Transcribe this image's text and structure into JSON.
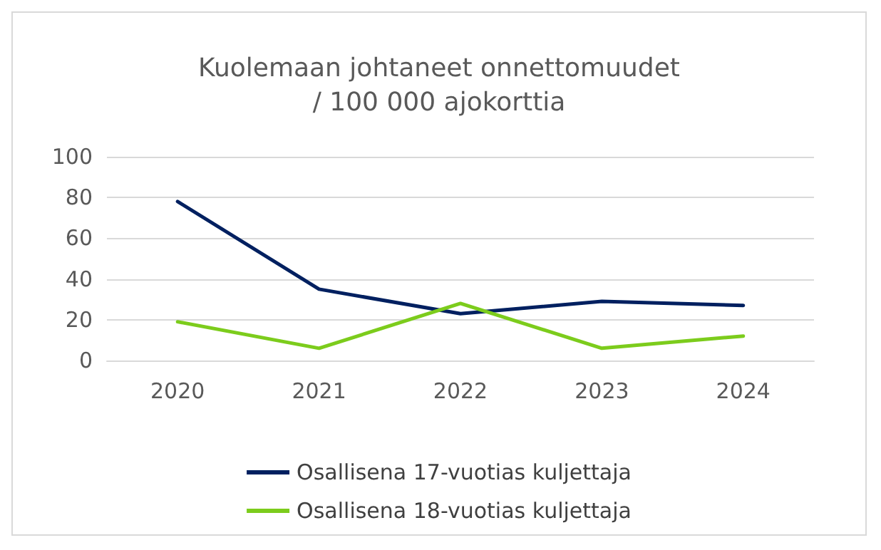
{
  "chart_data": {
    "type": "line",
    "title": "Kuolemaan johtaneet onnettomuudet\n/ 100 000 ajokorttia",
    "categories": [
      "2020",
      "2021",
      "2022",
      "2023",
      "2024"
    ],
    "series": [
      {
        "name": "Osallisena 17-vuotias kuljettaja",
        "color": "#002060",
        "values": [
          78,
          35,
          23,
          29,
          27
        ]
      },
      {
        "name": "Osallisena 18-vuotias kuljettaja",
        "color": "#7ccc1c",
        "values": [
          19,
          6,
          28,
          6,
          12
        ]
      }
    ],
    "ylim": [
      0,
      100
    ],
    "yticks": [
      0,
      20,
      40,
      60,
      80,
      100
    ],
    "grid": "y",
    "legend": "bottom",
    "marker": "none",
    "line_style": "solid"
  }
}
